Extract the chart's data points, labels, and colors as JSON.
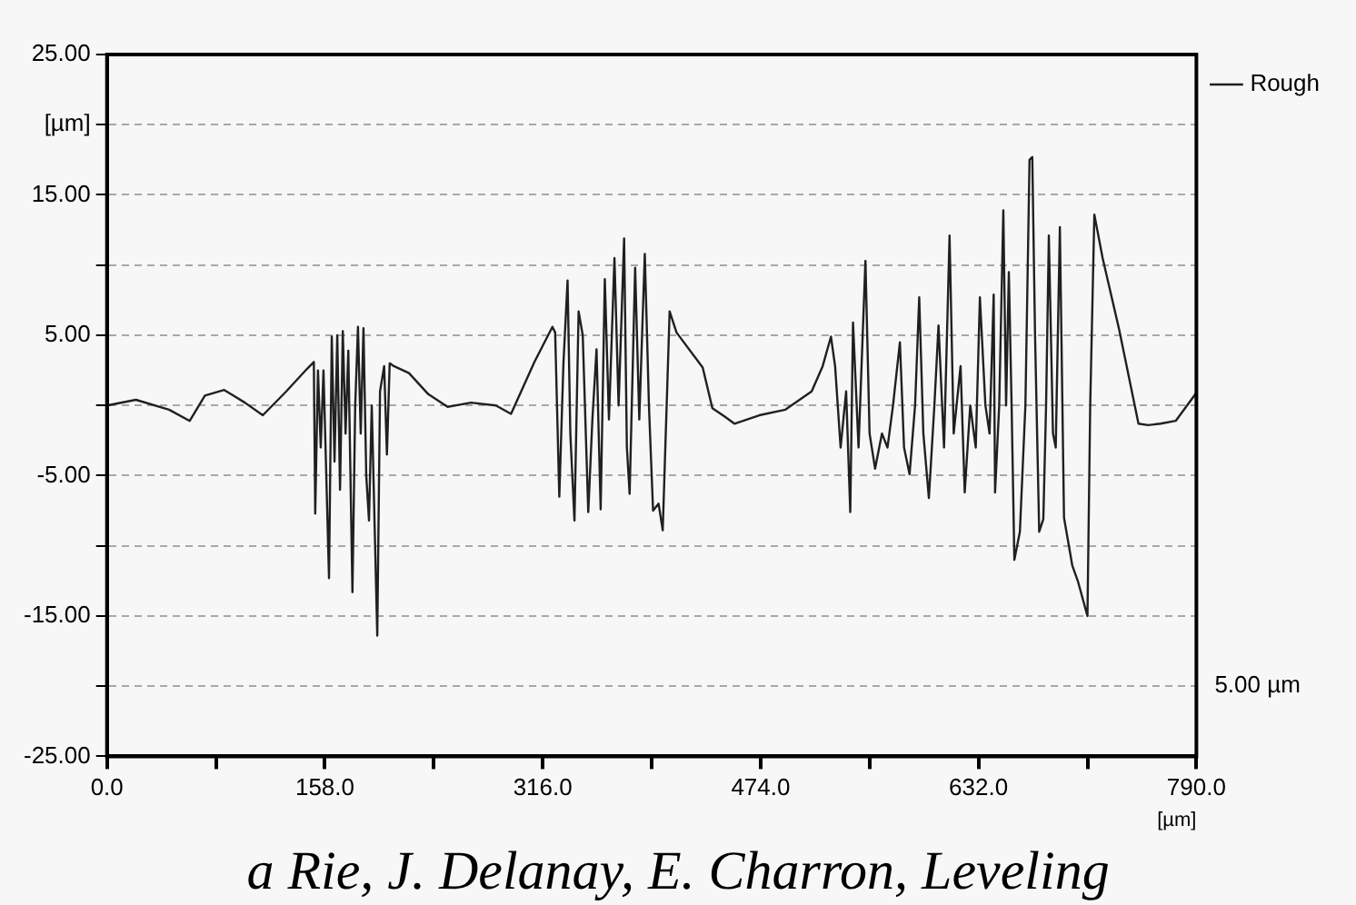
{
  "chart_data": {
    "type": "line",
    "x": [
      0,
      21,
      45,
      60,
      71,
      85,
      100,
      113,
      130,
      145,
      150,
      151,
      153,
      155,
      157,
      161,
      163,
      165,
      167,
      169,
      171,
      173,
      175,
      178,
      180,
      182,
      184,
      186,
      188,
      190,
      192,
      196,
      198,
      201,
      203,
      205,
      208,
      219,
      233,
      247,
      264,
      282,
      293,
      310,
      323,
      325,
      328,
      331,
      334,
      336,
      339,
      342,
      345,
      349,
      352,
      355,
      358,
      361,
      364,
      368,
      371,
      375,
      377,
      379,
      383,
      386,
      390,
      393,
      396,
      400,
      403,
      408,
      413,
      432,
      439,
      448,
      455,
      473,
      492,
      511,
      519,
      525,
      528,
      532,
      536,
      539,
      541,
      545,
      550,
      553,
      557,
      562,
      566,
      570,
      575,
      578,
      582,
      586,
      589,
      592,
      596,
      600,
      603,
      607,
      611,
      614,
      619,
      622,
      626,
      630,
      633,
      637,
      640,
      643,
      644,
      647,
      650,
      652,
      654,
      656,
      658,
      662,
      666,
      669,
      671,
      673,
      676,
      679,
      681,
      683,
      686,
      688,
      691,
      694,
      700,
      704,
      711,
      713,
      716,
      722,
      734,
      748,
      755,
      764,
      775,
      790
    ],
    "series": [
      {
        "name": "Rough",
        "color": "#202020",
        "values": [
          0,
          0.4,
          -0.3,
          -1.1,
          0.7,
          1.1,
          0.2,
          -0.7,
          1.0,
          2.6,
          3.1,
          -7.7,
          2.5,
          -3,
          2.5,
          -12.3,
          4.9,
          -4,
          5.0,
          -6,
          5.3,
          -2,
          3.9,
          -13.3,
          0,
          5.6,
          -2,
          5.5,
          -5,
          -8.2,
          0,
          -16.4,
          1,
          2.8,
          -3.5,
          3.0,
          2.8,
          2.3,
          0.8,
          -0.1,
          0.2,
          0,
          -0.6,
          3.1,
          5.6,
          5.2,
          -6.5,
          3,
          8.9,
          -2,
          -8.2,
          6.7,
          5.0,
          -7.6,
          -1,
          4,
          -7.4,
          9.0,
          -1,
          10.5,
          0,
          11.9,
          -3,
          -6.3,
          9.8,
          -1,
          10.8,
          0,
          -7.5,
          -7,
          -8.9,
          6.7,
          5.2,
          2.7,
          -0.2,
          -0.8,
          -1.3,
          -0.7,
          -0.3,
          1.0,
          2.8,
          4.9,
          2.8,
          -3,
          1.0,
          -7.6,
          5.9,
          -3,
          10.3,
          -2,
          -4.5,
          -2,
          -3,
          0,
          4.5,
          -3,
          -4.9,
          0,
          7.7,
          -2,
          -6.6,
          0,
          5.7,
          -3,
          12.1,
          -2,
          2.8,
          -6.2,
          0,
          -3,
          7.7,
          0,
          -2,
          7.9,
          -6.2,
          0,
          13.9,
          0,
          9.5,
          0,
          -11.0,
          -9,
          0,
          17.5,
          17.7,
          5,
          -9,
          -8.1,
          0,
          12.1,
          -2,
          -3,
          12.7,
          -8,
          -11.4,
          -12.5,
          -15.0,
          0,
          13.6,
          10.5,
          5.4,
          -1.3,
          -1.4,
          -1.3,
          -1.1,
          0.9
        ]
      }
    ],
    "xlabel": "[µm]",
    "xlim": [
      0,
      790
    ],
    "xticks": [
      {
        "value": 0,
        "label": "0.0"
      },
      {
        "value": 79,
        "label": null
      },
      {
        "value": 158,
        "label": "158.0"
      },
      {
        "value": 237,
        "label": null
      },
      {
        "value": 316,
        "label": "316.0"
      },
      {
        "value": 395,
        "label": null
      },
      {
        "value": 474,
        "label": "474.0"
      },
      {
        "value": 553,
        "label": null
      },
      {
        "value": 632,
        "label": "632.0"
      },
      {
        "value": 711,
        "label": null
      },
      {
        "value": 790,
        "label": "790.0"
      }
    ],
    "ylim": [
      -25,
      25
    ],
    "yticks": [
      {
        "value": -25,
        "label": "-25.00"
      },
      {
        "value": -20,
        "label": null
      },
      {
        "value": -15,
        "label": "-15.00"
      },
      {
        "value": -10,
        "label": null
      },
      {
        "value": -5,
        "label": "-5.00"
      },
      {
        "value": 0,
        "label": null
      },
      {
        "value": 5,
        "label": "5.00"
      },
      {
        "value": 10,
        "label": null
      },
      {
        "value": 15,
        "label": "15.00"
      },
      {
        "value": 20,
        "label": "[µm]"
      },
      {
        "value": 25,
        "label": "25.00"
      }
    ],
    "grid": "y",
    "legend": "top right",
    "marker": "none",
    "line_style": "solid",
    "annotations": [
      "5.00 µm",
      "a Rie, J. Delanay, E. Charron, Leveling"
    ]
  }
}
